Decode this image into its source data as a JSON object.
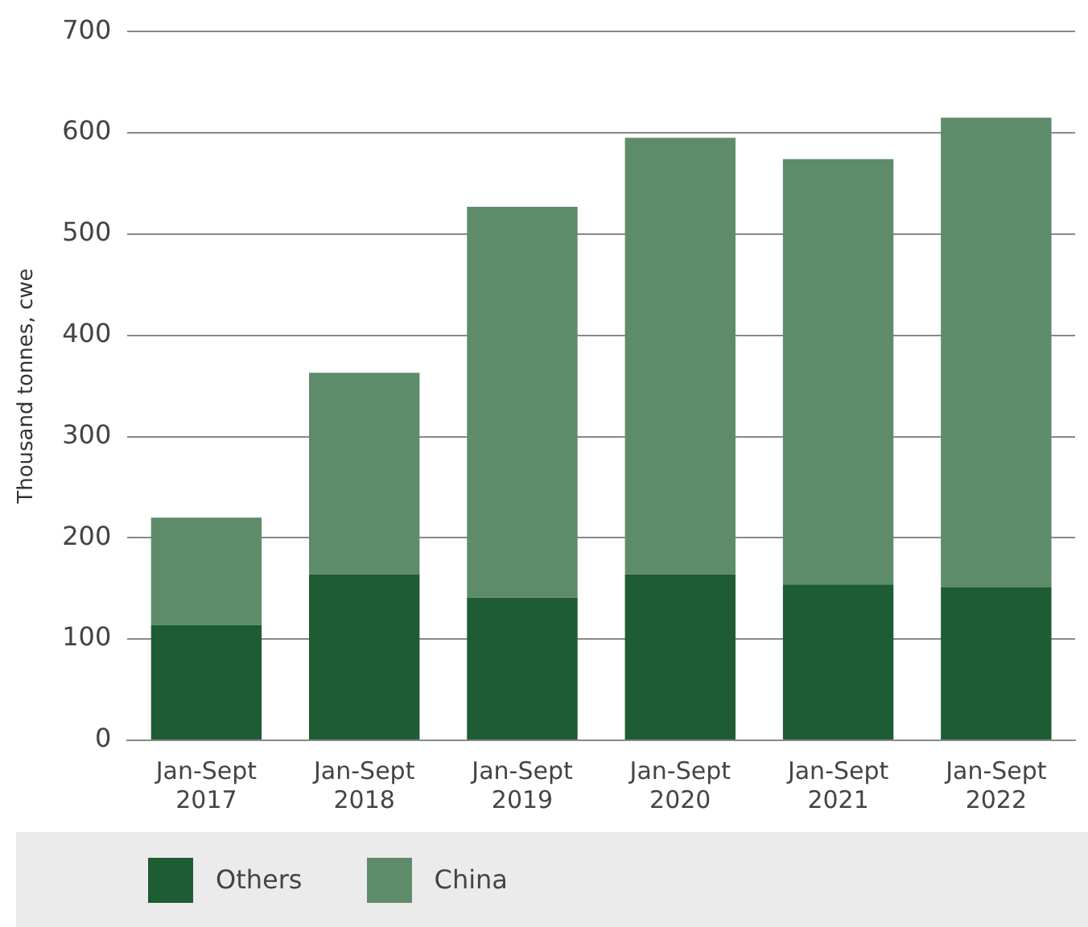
{
  "chart_data": {
    "type": "bar",
    "ylabel": "Thousand tonnes, cwe",
    "categories": [
      "Jan-Sept 2017",
      "Jan-Sept 2018",
      "Jan-Sept 2019",
      "Jan-Sept 2020",
      "Jan-Sept 2021",
      "Jan-Sept 2022"
    ],
    "series": [
      {
        "name": "Others",
        "color": "#1e5c34",
        "values": [
          114,
          164,
          141,
          164,
          154,
          151
        ]
      },
      {
        "name": "China",
        "color": "#5e8c6a",
        "values": [
          106,
          199,
          386,
          431,
          420,
          464
        ]
      }
    ],
    "stacked": true,
    "ylim": [
      0,
      700
    ],
    "yticks": [
      0,
      100,
      200,
      300,
      400,
      500,
      600,
      700
    ],
    "grid": "y",
    "legend": "bottom"
  }
}
